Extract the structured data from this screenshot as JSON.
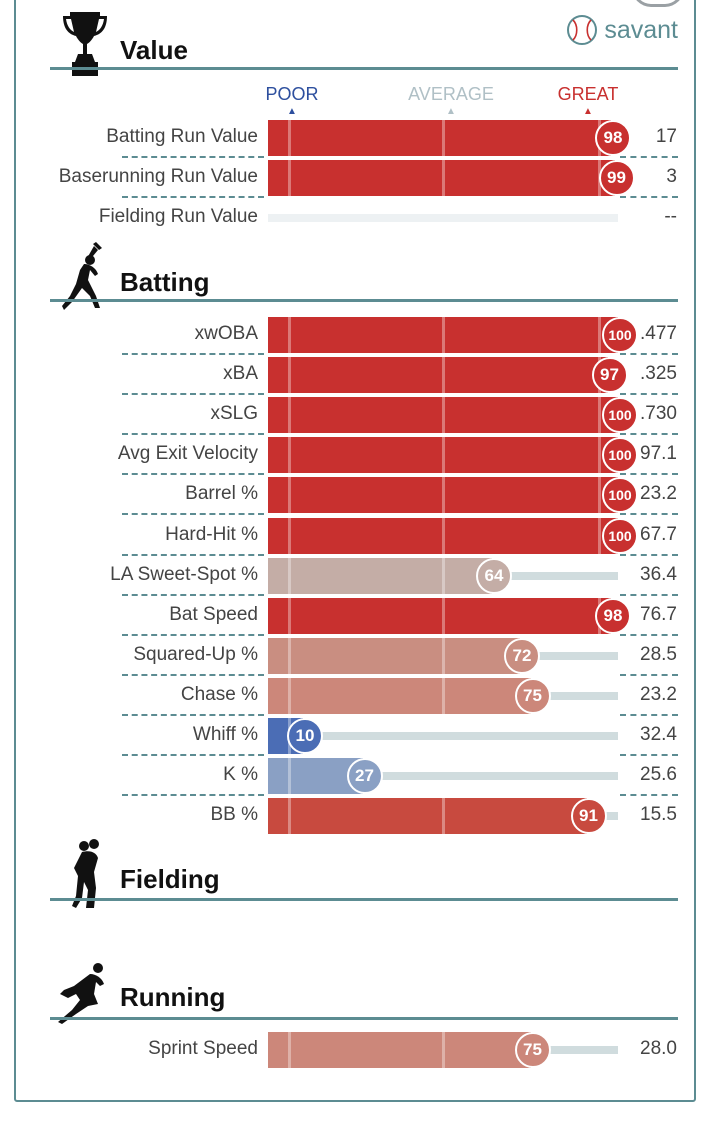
{
  "value_section": {
    "title": "Value",
    "brand": "savant",
    "scale": {
      "poor": "POOR",
      "average": "AVERAGE",
      "great": "GREAT"
    },
    "rows": [
      {
        "label": "Batting Run Value",
        "percentile": 98,
        "percentile_text": "98",
        "value": "17"
      },
      {
        "label": "Baserunning Run Value",
        "percentile": 99,
        "percentile_text": "99",
        "value": "3"
      },
      {
        "label": "Fielding Run Value",
        "percentile": null,
        "percentile_text": "",
        "value": "--"
      }
    ]
  },
  "batting_section": {
    "title": "Batting",
    "rows": [
      {
        "label": "xwOBA",
        "percentile": 100,
        "percentile_text": "100",
        "value": ".477",
        "color": "#c8302f"
      },
      {
        "label": "xBA",
        "percentile": 97,
        "percentile_text": "97",
        "value": ".325",
        "color": "#c8302f"
      },
      {
        "label": "xSLG",
        "percentile": 100,
        "percentile_text": "100",
        "value": ".730",
        "color": "#c8302f"
      },
      {
        "label": "Avg Exit Velocity",
        "percentile": 100,
        "percentile_text": "100",
        "value": "97.1",
        "color": "#c8302f"
      },
      {
        "label": "Barrel %",
        "percentile": 100,
        "percentile_text": "100",
        "value": "23.2",
        "color": "#c8302f"
      },
      {
        "label": "Hard-Hit %",
        "percentile": 100,
        "percentile_text": "100",
        "value": "67.7",
        "color": "#c8302f"
      },
      {
        "label": "LA Sweet-Spot %",
        "percentile": 64,
        "percentile_text": "64",
        "value": "36.4",
        "color": "#c4ada6"
      },
      {
        "label": "Bat Speed",
        "percentile": 98,
        "percentile_text": "98",
        "value": "76.7",
        "color": "#c8302f"
      },
      {
        "label": "Squared-Up %",
        "percentile": 72,
        "percentile_text": "72",
        "value": "28.5",
        "color": "#c98e81"
      },
      {
        "label": "Chase %",
        "percentile": 75,
        "percentile_text": "75",
        "value": "23.2",
        "color": "#cc877a"
      },
      {
        "label": "Whiff %",
        "percentile": 10,
        "percentile_text": "10",
        "value": "32.4",
        "color": "#4b6db5"
      },
      {
        "label": "K %",
        "percentile": 27,
        "percentile_text": "27",
        "value": "25.6",
        "color": "#8aa0c4"
      },
      {
        "label": "BB %",
        "percentile": 91,
        "percentile_text": "91",
        "value": "15.5",
        "color": "#c84a3f"
      }
    ]
  },
  "fielding_section": {
    "title": "Fielding"
  },
  "running_section": {
    "title": "Running",
    "rows": [
      {
        "label": "Sprint Speed",
        "percentile": 75,
        "percentile_text": "75",
        "value": "28.0",
        "color": "#cc877a"
      }
    ]
  },
  "colors": {
    "frame": "#5c8c92",
    "poor": "#2d4f9e",
    "average": "#b0c0c6",
    "great": "#c8302f",
    "track": "#d0dcde"
  }
}
